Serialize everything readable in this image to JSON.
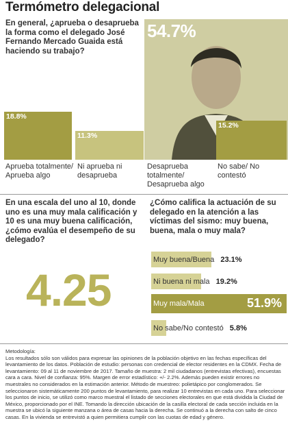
{
  "title": "Termómetro delegacional",
  "q1": {
    "question": "En general, ¿aprueba o desaprueba la forma como el delegado José Fernando Mercado Guaida está haciendo su trabajo?",
    "chart_data": {
      "type": "bar",
      "categories": [
        "Aprueba totalmente/ Aprueba algo",
        "Ni aprueba ni desaprueba",
        "Desaprueba totalmente/ Desaprueba algo",
        "No sabe/ No contestó"
      ],
      "values": [
        18.8,
        11.3,
        54.7,
        15.2
      ],
      "labels": [
        "18.8%",
        "11.3%",
        "54.7%",
        "15.2%"
      ],
      "ylim": [
        0,
        60
      ]
    }
  },
  "q2": {
    "question": "En una escala del uno al 10, donde uno es una muy mala calificación y 10 es una muy buena calificación, ¿cómo evalúa el desempeño de su delegado?",
    "score": "4.25"
  },
  "q3": {
    "question": "¿Cómo califica la actuación de su delegado en la atención a las víctimas del sismo: muy buena, buena, mala o muy mala?",
    "chart_data": {
      "type": "bar",
      "orientation": "horizontal",
      "categories": [
        "Muy buena/Buena",
        "Ni buena ni mala",
        "Muy mala/Mala",
        "No sabe/No contestó"
      ],
      "values": [
        23.1,
        19.2,
        51.9,
        5.8
      ],
      "labels": [
        "23.1%",
        "19.2%",
        "51.9%",
        "5.8%"
      ],
      "xlim": [
        0,
        55
      ]
    }
  },
  "methodology": {
    "heading": "Metodología:",
    "text": "Los resultados sólo son válidos para expresar las opiniones de la población objetivo en las fechas específicas del levantamiento de los datos. Población de estudio: personas con credencial de elector residentes en la CDMX. Fecha de levantamiento: 09 al 11 de noviembre de 2017. Tamaño de muestra: 2 mil ciudadanos (entrevistas efectivas), encuestas cara a cara. Nivel de confianza: 95%. Margen de error estadístico: +/- 2.2%. Además pueden existir errores no muestrales no considerados en la estimación anterior. Método de muestreo: polietápico por conglomerados. Se seleccionaron sistemáticamente 200 puntos de levantamiento, para realizar 10 entrevistas en cada uno. Para seleccionar los puntos de inicio, se utilizó como marco muestral el listado de secciones electorales en que está dividida la Ciudad de México, proporcionado por el INE. Tomando la dirección ubicación de la casilla electoral de cada sección incluida en la muestra se ubicó la siguiente manzana o área de casas hacia la derecha. Se continuó a la derecha con salto de cinco casas. En la vivienda se entrevistó a quien permitiera cumplir con las cuotas de edad y género."
  },
  "colors": {
    "bar_dark": "#a39d43",
    "bar_light": "#d6d296",
    "score": "#b9b35a"
  }
}
